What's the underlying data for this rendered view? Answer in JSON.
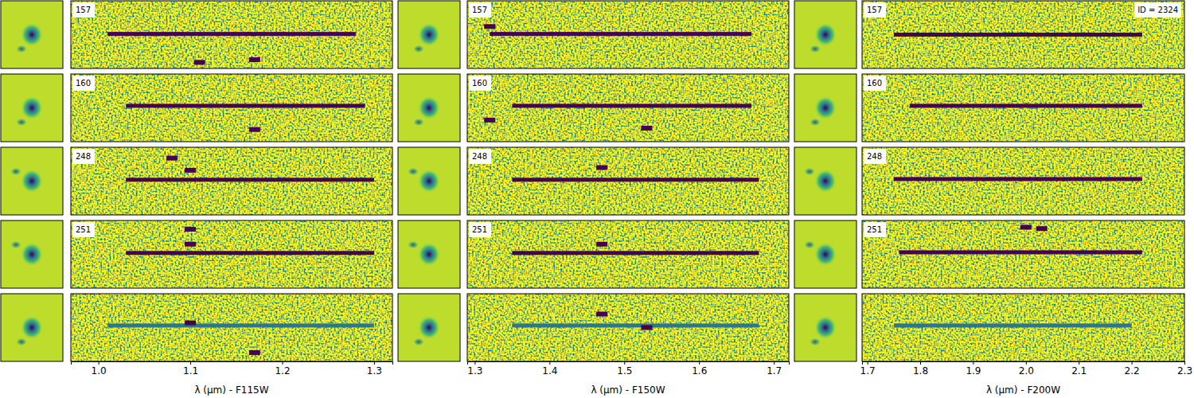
{
  "chart_data": {
    "type": "spectrum2d",
    "id_label": "ID = 2324",
    "tick_labels": "x",
    "color": "#440154",
    "ylim": [
      0,
      1
    ],
    "rows": [
      "157",
      "160",
      "248",
      "251",
      null
    ],
    "panels": [
      {
        "xlabel": "λ (μm) - F115W",
        "xlim": [
          0.97,
          1.32
        ],
        "xticks": [
          {
            "value": 1.0,
            "label": "1.0"
          },
          1.1,
          1.2,
          1.3
        ],
        "traces": [
          {
            "x": [
              1.01,
              1.28
            ],
            "y": 0.49
          },
          {
            "x": [
              1.03,
              1.29
            ],
            "y": 0.47
          },
          {
            "x": [
              1.03,
              1.3
            ],
            "y": 0.48
          },
          {
            "x": [
              1.03,
              1.3
            ],
            "y": 0.48
          },
          {
            "x": [
              1.01,
              1.3
            ],
            "y": 0.47,
            "color": "#2a788e"
          }
        ],
        "features": [
          [
            {
              "x": 1.11,
              "y": 0.91
            },
            {
              "x": 1.17,
              "y": 0.87
            }
          ],
          [
            {
              "x": 1.17,
              "y": 0.82
            }
          ],
          [
            {
              "x": 1.08,
              "y": 0.16
            },
            {
              "x": 1.1,
              "y": 0.34
            }
          ],
          [
            {
              "x": 1.1,
              "y": 0.13
            },
            {
              "x": 1.1,
              "y": 0.35
            }
          ],
          [
            {
              "x": 1.1,
              "y": 0.43
            },
            {
              "x": 1.17,
              "y": 0.87
            }
          ]
        ]
      },
      {
        "xlabel": "λ (μm) - F150W",
        "xlim": [
          1.29,
          1.72
        ],
        "xticks": [
          1.3,
          1.4,
          1.5,
          1.6,
          1.7
        ],
        "traces": [
          {
            "x": [
              1.32,
              1.67
            ],
            "y": 0.49
          },
          {
            "x": [
              1.35,
              1.67
            ],
            "y": 0.47
          },
          {
            "x": [
              1.35,
              1.68
            ],
            "y": 0.48
          },
          {
            "x": [
              1.35,
              1.68
            ],
            "y": 0.48
          },
          {
            "x": [
              1.35,
              1.68
            ],
            "y": 0.47,
            "color": "#2a788e"
          }
        ],
        "features": [
          [
            {
              "x": 1.32,
              "y": 0.38
            }
          ],
          [
            {
              "x": 1.32,
              "y": 0.68
            },
            {
              "x": 1.53,
              "y": 0.8
            }
          ],
          [
            {
              "x": 1.47,
              "y": 0.3
            }
          ],
          [
            {
              "x": 1.47,
              "y": 0.35
            }
          ],
          [
            {
              "x": 1.47,
              "y": 0.3
            },
            {
              "x": 1.53,
              "y": 0.5
            }
          ]
        ]
      },
      {
        "xlabel": "λ (μm) - F200W",
        "xlim": [
          1.69,
          2.3
        ],
        "xticks": [
          1.7,
          1.8,
          1.9,
          {
            "value": 2.0,
            "label": "2.0"
          },
          2.1,
          2.2,
          2.3
        ],
        "traces": [
          {
            "x": [
              1.75,
              2.22
            ],
            "y": 0.5
          },
          {
            "x": [
              1.78,
              2.22
            ],
            "y": 0.47
          },
          {
            "x": [
              1.75,
              2.22
            ],
            "y": 0.47
          },
          {
            "x": [
              1.76,
              2.22
            ],
            "y": 0.47
          },
          {
            "x": [
              1.75,
              2.2
            ],
            "y": 0.47,
            "color": "#2a788e"
          }
        ],
        "features": [
          [],
          [],
          [],
          [
            {
              "x": 2.0,
              "y": 0.1
            },
            {
              "x": 2.03,
              "y": 0.12
            }
          ],
          []
        ]
      }
    ]
  }
}
